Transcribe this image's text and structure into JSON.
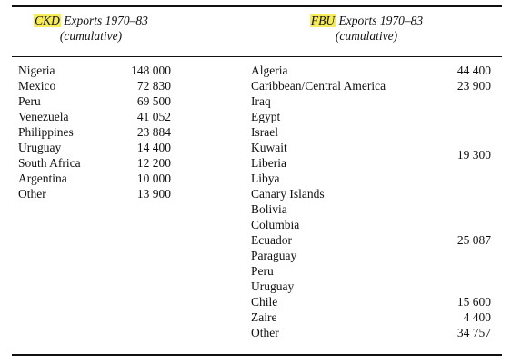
{
  "ckd": {
    "header_abbr": "CKD",
    "header_rest": " Exports 1970–83",
    "header_sub": "(cumulative)",
    "rows": [
      {
        "country": "Nigeria",
        "value": "148 000"
      },
      {
        "country": "Mexico",
        "value": "72 830"
      },
      {
        "country": "Peru",
        "value": "69 500"
      },
      {
        "country": "Venezuela",
        "value": "41 052"
      },
      {
        "country": "Philippines",
        "value": "23 884"
      },
      {
        "country": "Uruguay",
        "value": "14 400"
      },
      {
        "country": "South Africa",
        "value": "12 200"
      },
      {
        "country": "Argentina",
        "value": "10 000"
      },
      {
        "country": "Other",
        "value": "13 900"
      }
    ]
  },
  "fbu": {
    "header_abbr": "FBU",
    "header_rest": " Exports 1970–83",
    "header_sub": "(cumulative)",
    "countries": [
      "Algeria",
      "Caribbean/Central America",
      "Iraq",
      "Egypt",
      "Israel",
      "Kuwait",
      "Liberia",
      "Libya",
      "Canary Islands",
      "Bolivia",
      "Columbia",
      "Ecuador",
      "Paraguay",
      "Peru",
      "Uruguay",
      "Chile",
      "Zaire",
      "Other"
    ],
    "values": [
      {
        "value": "44 400"
      },
      {
        "value": "23 900"
      },
      {
        "value": "19 300"
      },
      {
        "value": "25 087"
      },
      {
        "value": "15 600"
      },
      {
        "value": "4 400"
      },
      {
        "value": "34 757"
      }
    ]
  },
  "highlight_color": "#f6ec5a"
}
